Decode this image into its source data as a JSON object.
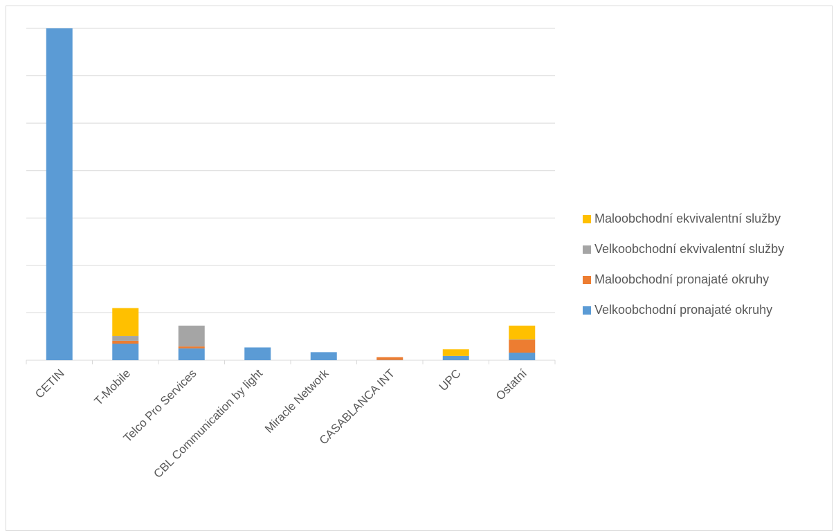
{
  "chart_data": {
    "type": "bar",
    "stacked": true,
    "title": "",
    "xlabel": "",
    "ylabel": "",
    "y_axis_labels_shown": false,
    "gridlines": true,
    "ylim": [
      0,
      70
    ],
    "grid_step": 10,
    "legend_position": "right",
    "categories": [
      "CETIN",
      "T-Mobile",
      "Telco Pro Services",
      "CBL Communication by light",
      "Miracle Network",
      "CASABLANCA INT",
      "UPC",
      "Ostatní"
    ],
    "series": [
      {
        "name": "Velkoobchodní pronajaté okruhy",
        "color": "#5B9BD5",
        "values": [
          70,
          3.5,
          2.5,
          2.7,
          1.7,
          0.05,
          0.9,
          1.6
        ]
      },
      {
        "name": "Maloobchodní pronajaté okruhy",
        "color": "#ED7D31",
        "values": [
          0,
          0.6,
          0.4,
          0,
          0,
          0.6,
          0,
          2.7
        ]
      },
      {
        "name": "Velkoobchodní ekvivalentní služby",
        "color": "#A5A5A5",
        "values": [
          0,
          1.0,
          4.4,
          0,
          0,
          0,
          0,
          0.1
        ]
      },
      {
        "name": "Maloobchodní ekvivalentní služby",
        "color": "#FFC000",
        "values": [
          0,
          5.9,
          0,
          0,
          0,
          0,
          1.4,
          2.9
        ]
      }
    ]
  }
}
